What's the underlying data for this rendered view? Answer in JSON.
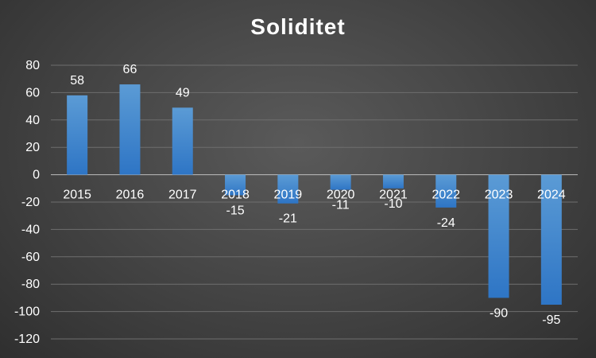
{
  "chart_data": {
    "type": "bar",
    "title": "Soliditet",
    "xlabel": "",
    "ylabel": "",
    "categories": [
      "2015",
      "2016",
      "2017",
      "2018",
      "2019",
      "2020",
      "2021",
      "2022",
      "2023",
      "2024"
    ],
    "values": [
      58,
      66,
      49,
      -15,
      -21,
      -11,
      -10,
      -24,
      -90,
      -95
    ],
    "data_labels": [
      "58",
      "66",
      "49",
      "-15",
      "-21",
      "-11",
      "-10",
      "-24",
      "-90",
      "-95"
    ],
    "ylim": [
      -120,
      80
    ],
    "yticks": [
      80,
      60,
      40,
      20,
      0,
      -20,
      -40,
      -60,
      -80,
      -100,
      -120
    ],
    "ytick_labels": [
      "80",
      "60",
      "40",
      "20",
      "0",
      "-20",
      "-40",
      "-60",
      "-80",
      "-100",
      "-120"
    ],
    "grid": true,
    "legend": "none",
    "colors": {
      "bar_top": "#5b9bd5",
      "bar_bottom": "#2e75c5",
      "text": "#ffffff"
    }
  }
}
